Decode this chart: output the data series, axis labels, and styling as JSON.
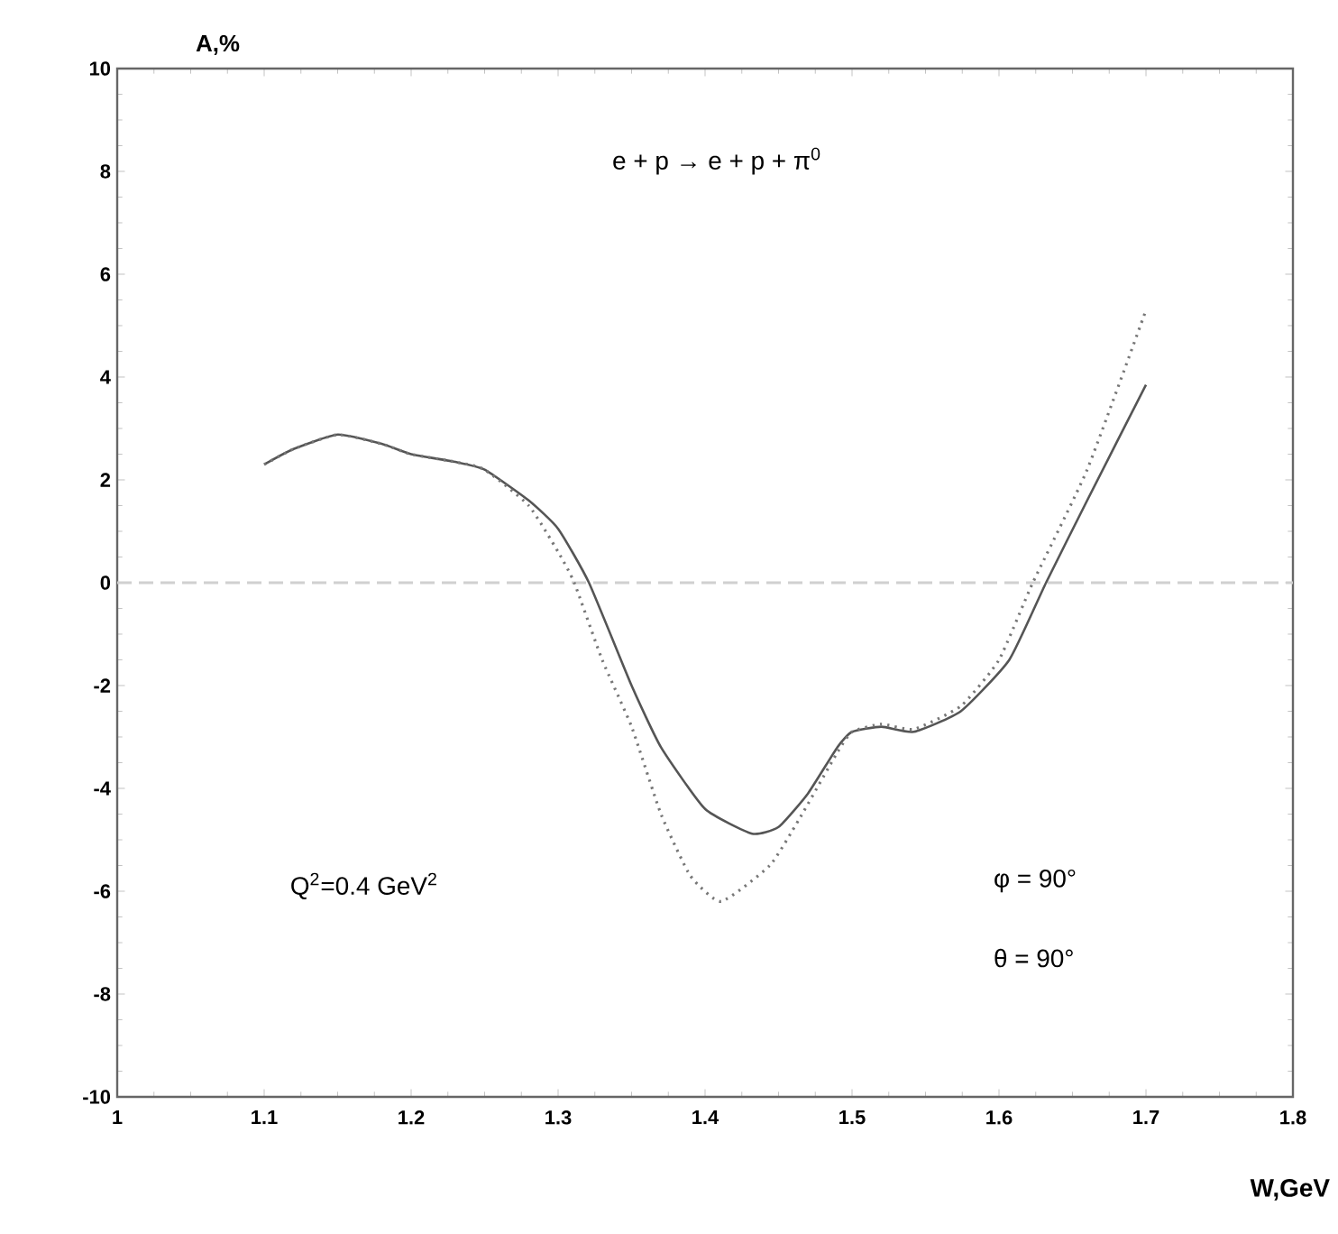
{
  "chart_data": {
    "type": "line",
    "title": "e + p → e + p + π$^{0}$",
    "xlabel": "W,GeV",
    "ylabel": "A,%",
    "annotations": [
      "Q$^{2}$=0.4 GeV$^{2}$",
      "φ =  90°",
      "θ =  90°"
    ],
    "xlim": [
      1,
      1.8
    ],
    "ylim": [
      -10,
      10
    ],
    "xticks": [
      1,
      1.1,
      1.2,
      1.3,
      1.4,
      1.5,
      1.6,
      1.7,
      1.8
    ],
    "yticks": [
      -10,
      -8,
      -6,
      -4,
      -2,
      0,
      2,
      4,
      6,
      8,
      10
    ],
    "ref_lines": [
      {
        "axis": "y",
        "value": 0,
        "color": "#d0d0d0",
        "line_style": "dashed"
      }
    ],
    "series": [
      {
        "color": "#555555",
        "line_style": "solid",
        "x": [
          1.1,
          1.12,
          1.15,
          1.18,
          1.2,
          1.23,
          1.25,
          1.28,
          1.3,
          1.321,
          1.35,
          1.37,
          1.4,
          1.432,
          1.45,
          1.47,
          1.49,
          1.5,
          1.52,
          1.542,
          1.574,
          1.607,
          1.632,
          1.66,
          1.7
        ],
        "values": [
          2.3,
          2.6,
          2.88,
          2.7,
          2.5,
          2.35,
          2.2,
          1.6,
          1.05,
          0,
          -2.0,
          -3.2,
          -4.4,
          -4.88,
          -4.75,
          -4.1,
          -3.2,
          -2.9,
          -2.8,
          -2.9,
          -2.5,
          -1.5,
          0,
          1.6,
          3.85
        ]
      },
      {
        "color": "#777777",
        "line_style": "dotted",
        "x": [
          1.1,
          1.12,
          1.15,
          1.18,
          1.2,
          1.23,
          1.25,
          1.28,
          1.3,
          1.311,
          1.33,
          1.35,
          1.37,
          1.39,
          1.411,
          1.444,
          1.464,
          1.49,
          1.5,
          1.52,
          1.542,
          1.574,
          1.6,
          1.623,
          1.66,
          1.7
        ],
        "values": [
          2.3,
          2.6,
          2.88,
          2.7,
          2.5,
          2.35,
          2.2,
          1.5,
          0.6,
          0,
          -1.5,
          -2.8,
          -4.5,
          -5.7,
          -6.2,
          -5.5,
          -4.6,
          -3.3,
          -2.9,
          -2.75,
          -2.85,
          -2.4,
          -1.5,
          0,
          2.2,
          5.3
        ]
      }
    ]
  }
}
